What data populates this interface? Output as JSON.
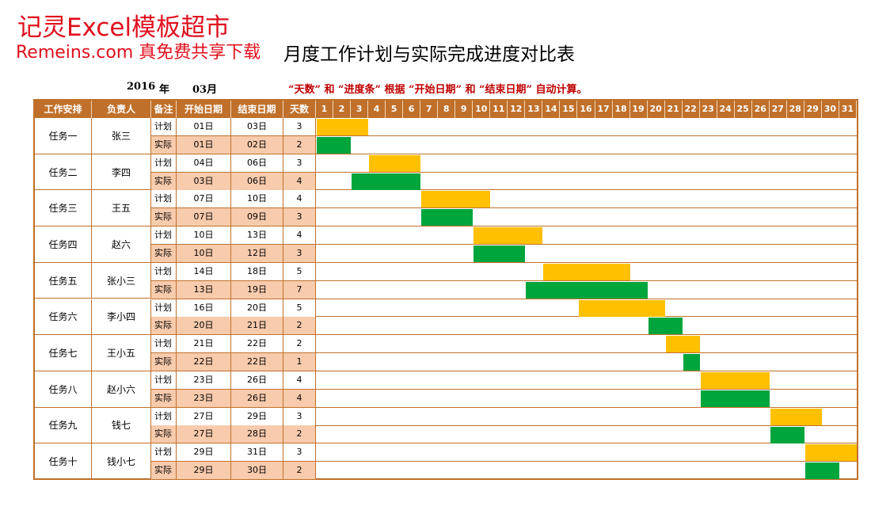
{
  "watermark": {
    "line1": "记灵Excel模板超市",
    "line2": "Remeins.com 真免费共享下载"
  },
  "title": "月度工作计划与实际完成进度对比表",
  "year": "2016",
  "year_unit": "年",
  "month": "03月",
  "note": "“天数” 和 “进度条” 根据 “开始日期” 和 “结束日期” 自动计算。",
  "colors": {
    "header": "#c0702a",
    "plan_bar": "#ffc000",
    "actual_bar": "#00a53c",
    "actual_row": "#f8cbad"
  },
  "headers": [
    "工作安排",
    "负责人",
    "备注",
    "开始日期",
    "结束日期",
    "天数"
  ],
  "days": [
    "1",
    "2",
    "3",
    "4",
    "5",
    "6",
    "7",
    "8",
    "9",
    "10",
    "11",
    "12",
    "13",
    "14",
    "15",
    "16",
    "17",
    "18",
    "19",
    "20",
    "21",
    "22",
    "23",
    "24",
    "25",
    "26",
    "27",
    "28",
    "29",
    "30",
    "31"
  ],
  "chart_data": {
    "type": "gantt",
    "x_unit": "day of month",
    "xlim": [
      1,
      31
    ],
    "series": [
      {
        "name": "计划",
        "color": "#ffc000"
      },
      {
        "name": "实际",
        "color": "#00a53c"
      }
    ],
    "tasks": [
      {
        "name": "任务一",
        "owner": "张三",
        "plan": {
          "label": "计划",
          "start": "01日",
          "end": "03日",
          "days": "3",
          "s": 1,
          "e": 3
        },
        "actual": {
          "label": "实际",
          "start": "01日",
          "end": "02日",
          "days": "2",
          "s": 1,
          "e": 2
        }
      },
      {
        "name": "任务二",
        "owner": "李四",
        "plan": {
          "label": "计划",
          "start": "04日",
          "end": "06日",
          "days": "3",
          "s": 4,
          "e": 6
        },
        "actual": {
          "label": "实际",
          "start": "03日",
          "end": "06日",
          "days": "4",
          "s": 3,
          "e": 6
        }
      },
      {
        "name": "任务三",
        "owner": "王五",
        "plan": {
          "label": "计划",
          "start": "07日",
          "end": "10日",
          "days": "4",
          "s": 7,
          "e": 10
        },
        "actual": {
          "label": "实际",
          "start": "07日",
          "end": "09日",
          "days": "3",
          "s": 7,
          "e": 9
        }
      },
      {
        "name": "任务四",
        "owner": "赵六",
        "plan": {
          "label": "计划",
          "start": "10日",
          "end": "13日",
          "days": "4",
          "s": 10,
          "e": 13
        },
        "actual": {
          "label": "实际",
          "start": "10日",
          "end": "12日",
          "days": "3",
          "s": 10,
          "e": 12
        }
      },
      {
        "name": "任务五",
        "owner": "张小三",
        "plan": {
          "label": "计划",
          "start": "14日",
          "end": "18日",
          "days": "5",
          "s": 14,
          "e": 18
        },
        "actual": {
          "label": "实际",
          "start": "13日",
          "end": "19日",
          "days": "7",
          "s": 13,
          "e": 19
        }
      },
      {
        "name": "任务六",
        "owner": "李小四",
        "plan": {
          "label": "计划",
          "start": "16日",
          "end": "20日",
          "days": "5",
          "s": 16,
          "e": 20
        },
        "actual": {
          "label": "实际",
          "start": "20日",
          "end": "21日",
          "days": "2",
          "s": 20,
          "e": 21
        }
      },
      {
        "name": "任务七",
        "owner": "王小五",
        "plan": {
          "label": "计划",
          "start": "21日",
          "end": "22日",
          "days": "2",
          "s": 21,
          "e": 22
        },
        "actual": {
          "label": "实际",
          "start": "22日",
          "end": "22日",
          "days": "1",
          "s": 22,
          "e": 22
        }
      },
      {
        "name": "任务八",
        "owner": "赵小六",
        "plan": {
          "label": "计划",
          "start": "23日",
          "end": "26日",
          "days": "4",
          "s": 23,
          "e": 26
        },
        "actual": {
          "label": "实际",
          "start": "23日",
          "end": "26日",
          "days": "4",
          "s": 23,
          "e": 26
        }
      },
      {
        "name": "任务九",
        "owner": "钱七",
        "plan": {
          "label": "计划",
          "start": "27日",
          "end": "29日",
          "days": "3",
          "s": 27,
          "e": 29
        },
        "actual": {
          "label": "实际",
          "start": "27日",
          "end": "28日",
          "days": "2",
          "s": 27,
          "e": 28
        }
      },
      {
        "name": "任务十",
        "owner": "钱小七",
        "plan": {
          "label": "计划",
          "start": "29日",
          "end": "31日",
          "days": "3",
          "s": 29,
          "e": 31
        },
        "actual": {
          "label": "实际",
          "start": "29日",
          "end": "30日",
          "days": "2",
          "s": 29,
          "e": 30
        }
      }
    ]
  }
}
